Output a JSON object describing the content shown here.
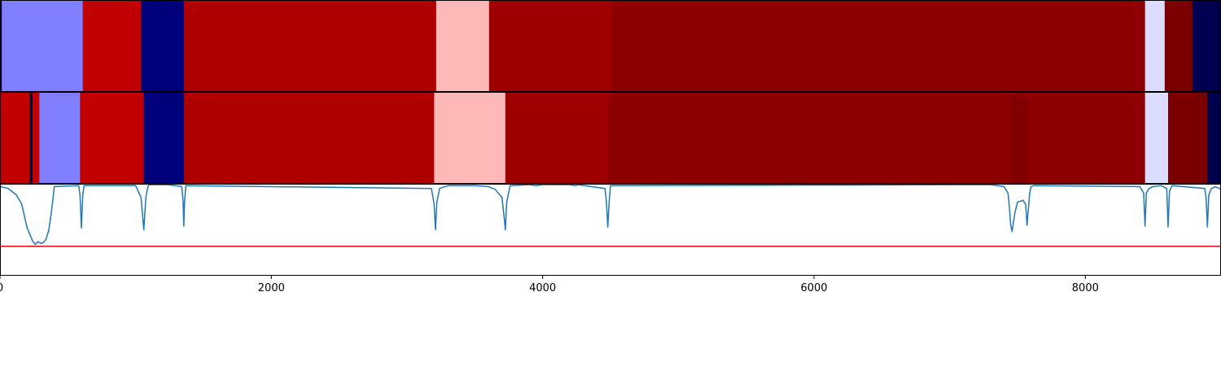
{
  "chart_data": [
    {
      "type": "segment-bar",
      "segments": [
        {
          "start": 0,
          "end": 13,
          "color": "#000050"
        },
        {
          "start": 13,
          "end": 610,
          "color": "#7f7fff"
        },
        {
          "start": 610,
          "end": 1040,
          "color": "#c00000"
        },
        {
          "start": 1040,
          "end": 1355,
          "color": "#00007a"
        },
        {
          "start": 1355,
          "end": 3215,
          "color": "#ae0000"
        },
        {
          "start": 3215,
          "end": 3605,
          "color": "#ffb8b8"
        },
        {
          "start": 3605,
          "end": 4510,
          "color": "#9e0000"
        },
        {
          "start": 4510,
          "end": 8440,
          "color": "#8c0000"
        },
        {
          "start": 8440,
          "end": 8585,
          "color": "#dcdcff"
        },
        {
          "start": 8585,
          "end": 8790,
          "color": "#7a0000"
        },
        {
          "start": 8790,
          "end": 9000,
          "color": "#000050"
        }
      ]
    },
    {
      "type": "segment-bar",
      "segments": [
        {
          "start": 0,
          "end": 220,
          "color": "#c00000"
        },
        {
          "start": 220,
          "end": 240,
          "color": "#000033"
        },
        {
          "start": 240,
          "end": 290,
          "color": "#c00000"
        },
        {
          "start": 290,
          "end": 590,
          "color": "#7f7fff"
        },
        {
          "start": 590,
          "end": 1060,
          "color": "#c00000"
        },
        {
          "start": 1060,
          "end": 1355,
          "color": "#00007a"
        },
        {
          "start": 1355,
          "end": 3200,
          "color": "#ae0000"
        },
        {
          "start": 3200,
          "end": 3725,
          "color": "#ffb8b8"
        },
        {
          "start": 3725,
          "end": 4480,
          "color": "#9e0000"
        },
        {
          "start": 4480,
          "end": 7450,
          "color": "#8c0000"
        },
        {
          "start": 7450,
          "end": 7570,
          "color": "#820000"
        },
        {
          "start": 7570,
          "end": 8440,
          "color": "#8c0000"
        },
        {
          "start": 8440,
          "end": 8610,
          "color": "#dcdcff"
        },
        {
          "start": 8610,
          "end": 8900,
          "color": "#7a0000"
        },
        {
          "start": 8900,
          "end": 9000,
          "color": "#000050"
        }
      ]
    },
    {
      "type": "line",
      "xlim": [
        0,
        9000
      ],
      "ylim": [
        -1,
        0
      ],
      "xticks": [
        0,
        2000,
        4000,
        6000,
        8000
      ],
      "xtick_labels": [
        "0",
        "2000",
        "4000",
        "6000",
        "8000"
      ],
      "threshold": -0.68,
      "line_color": "#1f77b4",
      "threshold_color": "#e00000",
      "x": [
        0,
        60,
        120,
        160,
        180,
        200,
        220,
        240,
        260,
        280,
        300,
        320,
        340,
        360,
        380,
        400,
        580,
        590,
        600,
        610,
        620,
        1000,
        1040,
        1060,
        1075,
        1090,
        1100,
        1240,
        1340,
        1350,
        1355,
        1360,
        1370,
        3180,
        3200,
        3210,
        3220,
        3240,
        3300,
        3500,
        3600,
        3650,
        3700,
        3715,
        3725,
        3735,
        3760,
        3900,
        3950,
        4000,
        4200,
        4240,
        4260,
        4460,
        4470,
        4480,
        4490,
        4500,
        7100,
        7300,
        7400,
        7430,
        7440,
        7450,
        7460,
        7480,
        7500,
        7540,
        7560,
        7570,
        7580,
        7590,
        7600,
        7620,
        8400,
        8430,
        8440,
        8450,
        8470,
        8500,
        8560,
        8600,
        8610,
        8620,
        8640,
        8880,
        8890,
        8900,
        8910,
        8930,
        8960,
        9000
      ],
      "y": [
        -0.03,
        -0.05,
        -0.12,
        -0.22,
        -0.35,
        -0.48,
        -0.55,
        -0.62,
        -0.66,
        -0.63,
        -0.65,
        -0.64,
        -0.6,
        -0.5,
        -0.3,
        -0.03,
        -0.02,
        -0.12,
        -0.48,
        -0.12,
        -0.02,
        -0.02,
        -0.15,
        -0.5,
        -0.15,
        -0.03,
        -0.01,
        -0.01,
        -0.03,
        -0.2,
        -0.46,
        -0.2,
        -0.02,
        -0.05,
        -0.22,
        -0.5,
        -0.2,
        -0.05,
        -0.02,
        -0.02,
        -0.03,
        -0.06,
        -0.15,
        -0.35,
        -0.5,
        -0.2,
        -0.02,
        -0.01,
        -0.02,
        -0.01,
        -0.01,
        -0.02,
        -0.01,
        -0.05,
        -0.2,
        -0.47,
        -0.2,
        -0.02,
        -0.01,
        -0.01,
        -0.03,
        -0.1,
        -0.25,
        -0.45,
        -0.52,
        -0.32,
        -0.2,
        -0.18,
        -0.22,
        -0.45,
        -0.28,
        -0.1,
        -0.03,
        -0.02,
        -0.03,
        -0.1,
        -0.46,
        -0.1,
        -0.05,
        -0.03,
        -0.02,
        -0.05,
        -0.47,
        -0.08,
        -0.02,
        -0.05,
        -0.15,
        -0.47,
        -0.12,
        -0.05,
        -0.03,
        -0.06
      ]
    }
  ]
}
